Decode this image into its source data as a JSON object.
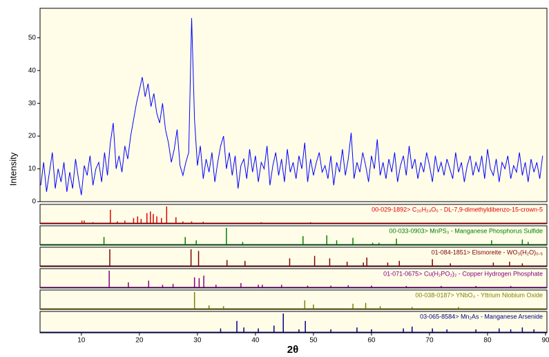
{
  "chart_data": {
    "type": "line",
    "y_label": "Intensity",
    "x_label": "2θ",
    "color": "#0000ff",
    "xlim": [
      3,
      90
    ],
    "ylim": [
      0,
      59
    ],
    "xticks": [
      10,
      20,
      30,
      40,
      50,
      60,
      70,
      80,
      90
    ],
    "yticks": [
      0,
      10,
      20,
      30,
      40,
      50
    ],
    "x": [
      3,
      3.5,
      4,
      4.5,
      5,
      5.5,
      6,
      6.5,
      7,
      7.5,
      8,
      8.5,
      9,
      9.5,
      10,
      10.5,
      11,
      11.5,
      12,
      12.5,
      13,
      13.5,
      14,
      14.5,
      15,
      15.5,
      16,
      16.5,
      17,
      17.5,
      18,
      18.5,
      19,
      19.5,
      20,
      20.5,
      21,
      21.5,
      22,
      22.5,
      23,
      23.5,
      24,
      24.5,
      25,
      25.5,
      26,
      26.5,
      27,
      27.5,
      28,
      28.5,
      29,
      29.5,
      30,
      30.5,
      31,
      31.5,
      32,
      32.5,
      33,
      33.5,
      34,
      34.5,
      35,
      35.5,
      36,
      36.5,
      37,
      37.5,
      38,
      38.5,
      39,
      39.5,
      40,
      40.5,
      41,
      41.5,
      42,
      42.5,
      43,
      43.5,
      44,
      44.5,
      45,
      45.5,
      46,
      46.5,
      47,
      47.5,
      48,
      48.5,
      49,
      49.5,
      50,
      50.5,
      51,
      51.5,
      52,
      52.5,
      53,
      53.5,
      54,
      54.5,
      55,
      55.5,
      56,
      56.5,
      57,
      57.5,
      58,
      58.5,
      59,
      59.5,
      60,
      60.5,
      61,
      61.5,
      62,
      62.5,
      63,
      63.5,
      64,
      64.5,
      65,
      65.5,
      66,
      66.5,
      67,
      67.5,
      68,
      68.5,
      69,
      69.5,
      70,
      70.5,
      71,
      71.5,
      72,
      72.5,
      73,
      73.5,
      74,
      74.5,
      75,
      75.5,
      76,
      76.5,
      77,
      77.5,
      78,
      78.5,
      79,
      79.5,
      80,
      80.5,
      81,
      81.5,
      82,
      82.5,
      83,
      83.5,
      84,
      84.5,
      85,
      85.5,
      86,
      86.5,
      87,
      87.5,
      88,
      88.5,
      89,
      89.5
    ],
    "values": [
      5,
      12,
      3,
      9,
      15,
      4,
      10,
      6,
      12,
      3,
      9,
      4,
      13,
      7,
      2,
      11,
      8,
      14,
      5,
      10,
      12,
      6,
      15,
      8,
      18,
      24,
      10,
      14,
      9,
      17,
      13,
      20,
      25,
      30,
      34,
      38,
      32,
      36,
      29,
      33,
      27,
      24,
      30,
      22,
      18,
      12,
      16,
      22,
      11,
      8,
      12,
      15,
      56,
      25,
      11,
      17,
      7,
      13,
      9,
      15,
      6,
      12,
      17,
      20,
      10,
      15,
      8,
      14,
      4,
      11,
      13,
      7,
      16,
      9,
      14,
      6,
      12,
      10,
      17,
      5,
      11,
      15,
      8,
      13,
      6,
      16,
      9,
      12,
      7,
      14,
      10,
      18,
      6,
      13,
      8,
      12,
      15,
      9,
      11,
      7,
      14,
      5,
      12,
      9,
      16,
      8,
      13,
      21,
      7,
      12,
      9,
      15,
      11,
      6,
      14,
      10,
      19,
      8,
      12,
      7,
      13,
      9,
      15,
      6,
      11,
      14,
      8,
      17,
      10,
      13,
      7,
      12,
      9,
      15,
      11,
      6,
      14,
      9,
      12,
      8,
      13,
      10,
      7,
      15,
      9,
      12,
      6,
      11,
      14,
      8,
      12,
      9,
      14,
      7,
      16,
      10,
      8,
      13,
      6,
      12,
      10,
      14,
      7,
      11,
      9,
      15,
      8,
      12,
      6,
      13,
      9,
      12,
      7,
      14
    ],
    "references": [
      {
        "label": "00-029-1892> C₂₀H₂₄O₅ - DL-7,9-dimethyldibenzo-15-crown-5",
        "color": "#e00000",
        "ylim": [
          0,
          100
        ],
        "x": [
          10.1,
          10.5,
          12,
          15,
          16.2,
          17.5,
          19,
          19.7,
          20.3,
          21.3,
          21.9,
          22.4,
          23,
          23.8,
          24.7,
          26.3,
          27.5,
          29,
          31,
          41,
          49.5
        ],
        "values": [
          15,
          15,
          5,
          80,
          10,
          15,
          30,
          40,
          25,
          60,
          70,
          55,
          40,
          30,
          100,
          35,
          10,
          10,
          8,
          5,
          5
        ]
      },
      {
        "label": "00-033-0903> MnPS₃ - Manganese Phosphorus Sulfide",
        "color": "#008000",
        "ylim": [
          0,
          100
        ],
        "x": [
          13.9,
          27.9,
          29.8,
          35,
          37.8,
          48.2,
          52.3,
          54,
          56.8,
          60.2,
          61.3,
          64.3,
          80.7,
          86,
          87
        ],
        "values": [
          45,
          45,
          25,
          100,
          15,
          50,
          55,
          25,
          40,
          10,
          10,
          35,
          25,
          30,
          15
        ]
      },
      {
        "label": "01-084-1851> Elsmoreite - WO₃(H₂O)₀.₅",
        "color": "#800000",
        "ylim": [
          0,
          100
        ],
        "x": [
          14.9,
          28.9,
          30.2,
          35.1,
          38.2,
          45.9,
          50.2,
          52.8,
          55.8,
          58.6,
          59.2,
          62.8,
          64.8,
          70.5,
          73.6,
          81,
          83.8,
          86
        ],
        "values": [
          100,
          100,
          90,
          35,
          30,
          45,
          60,
          45,
          25,
          20,
          50,
          20,
          30,
          40,
          15,
          20,
          25,
          15
        ]
      },
      {
        "label": "01-071-0675> Cu(H₂PO₂)₂ - Copper Hydrogen Phosphate",
        "color": "#800080",
        "ylim": [
          0,
          100
        ],
        "x": [
          14.8,
          18.1,
          21.6,
          24,
          25.8,
          29.5,
          30.3,
          31.1,
          33.2,
          37.5,
          40.5,
          41.2,
          44.5,
          49,
          53,
          56,
          60,
          66,
          72,
          78,
          84
        ],
        "values": [
          100,
          30,
          40,
          15,
          20,
          60,
          55,
          70,
          15,
          25,
          15,
          15,
          15,
          10,
          10,
          12,
          10,
          8,
          8,
          8,
          8
        ]
      },
      {
        "label": "00-038-0187> YNbO₄ - Yttrium Niobium Oxide",
        "color": "#808000",
        "ylim": [
          0,
          100
        ],
        "x": [
          29.5,
          32,
          34.5,
          48.5,
          50,
          56.8,
          59,
          61.5,
          67,
          75
        ],
        "values": [
          100,
          20,
          15,
          50,
          25,
          30,
          35,
          15,
          10,
          10
        ]
      },
      {
        "label": "03-065-8584> Mn₂As - Manganese Arsenide",
        "color": "#000080",
        "ylim": [
          0,
          100
        ],
        "x": [
          34,
          36.8,
          38,
          40.5,
          43.2,
          44.8,
          47.5,
          48.6,
          53,
          57.5,
          60,
          65.5,
          67,
          70.5,
          73,
          78,
          82,
          84,
          86,
          88
        ],
        "values": [
          20,
          60,
          25,
          20,
          35,
          100,
          15,
          60,
          15,
          25,
          15,
          20,
          30,
          20,
          15,
          15,
          20,
          15,
          25,
          15
        ]
      }
    ]
  }
}
